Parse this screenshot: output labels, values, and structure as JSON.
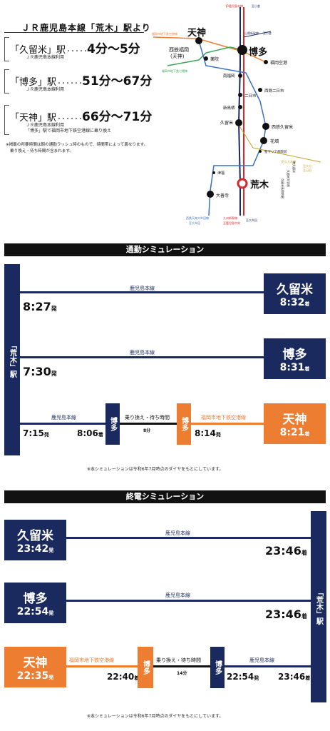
{
  "header": {
    "title": "ＪＲ鹿児島本線「荒木」駅より"
  },
  "routes": [
    {
      "station": "「久留米」駅",
      "dots": "・・・・・",
      "time": "4分～5分",
      "note1": "ＪＲ鹿児島本線利用",
      "note2": ""
    },
    {
      "station": "「博多」駅",
      "dots": "・・・・・・",
      "time": "51分～67分",
      "note1": "ＪＲ鹿児島本線利用",
      "note2": ""
    },
    {
      "station": "「天神」駅",
      "dots": "・・・・・・",
      "time": "66分～71分",
      "note1": "ＪＲ鹿児島本線利用",
      "note2": "「博多」駅で福岡市地下鉄空港線に乗り換え"
    }
  ],
  "route_disclaimer": {
    "line1": "※掲載の所要時間は朝の通勤ラッシュ時のもので、時間帯によって異なります。",
    "line2": "乗り換え・待ち時間が含まれます。"
  },
  "map": {
    "lines": {
      "jr_kagoshima": "JR鹿児島本線",
      "sanyo_shinkansen": "山陽新幹線",
      "subway_kuko": "福岡市地下鉄空港線",
      "subway_nanakuma": "福岡市地下鉄七隈線",
      "kyushu_shinkansen": "九州新幹線",
      "jr_kuko": "至空港",
      "nishitetsu_tenjin": "西鉄天神大牟田線",
      "jr_hotarunuma": "JR久大本線"
    },
    "stations": {
      "tenjin": "天神",
      "hakata": "博多",
      "nishitetsu_fukuoka": "西鉄福岡",
      "nishitetsu_fukuoka_sub": "(天神)",
      "yakuin": "薬院",
      "fukuoka_airport": "福岡空港",
      "minami_fukuoka": "南福岡",
      "nishitetsu_futsukaichi": "西鉄二日市",
      "futsukaichi": "二日市",
      "shin_tosu": "新鳥栖",
      "kurume": "久留米",
      "nishitetsu_kurume": "西鉄久留米",
      "hanabatake": "花畑",
      "seibo_maria": "聖マリア病院前",
      "tsubuku": "津福",
      "araki": "荒木",
      "daizenji": "大善寺",
      "kurume_daigaku": "久留米大学前",
      "kurume_koko": "久留米高校前駅",
      "minami_kurume": "南久留米"
    },
    "labels": {
      "to_kokura": "至小倉",
      "to_kokura2": "至小倉",
      "to_kagoshima_jr": "至大牟田",
      "to_omuta": "至大牟田",
      "to_kagoshima_chuo": "至鹿児島中央",
      "to_oita": "至大分",
      "to_oita2": "至日田",
      "to_kuko": "至空港",
      "nishitetsu_omuta": "至大牟田"
    },
    "colors": {
      "jr": "#1a2a5e",
      "shinkansen": "#d9262c",
      "subway_kuko": "#ed7d31",
      "subway_nanakuma": "#3aa357",
      "nishitetsu": "#3a6fc4",
      "kudai": "#c9a227"
    }
  },
  "commute": {
    "heading": "通勤シミュレーション",
    "origin_label": "「荒木」駅",
    "rows": [
      {
        "line": "鹿児島本線",
        "depart": "8:27",
        "depart_suffix": "発",
        "dest": "久留米",
        "arrive": "8:32",
        "arrive_suffix": "着"
      },
      {
        "line": "鹿児島本線",
        "depart": "7:30",
        "depart_suffix": "発",
        "dest": "博多",
        "arrive": "8:31",
        "arrive_suffix": "着"
      }
    ],
    "transfer_row": {
      "line1": "鹿児島本線",
      "depart": "7:15",
      "depart_suffix": "発",
      "transfer_arrive": "8:06",
      "transfer_arrive_suffix": "着",
      "transfer_station": "博多",
      "transfer_wait_label": "乗り換え・待ち時間",
      "transfer_wait": "8分",
      "transfer_station2": "博多",
      "line2": "福岡市地下鉄空港線",
      "transfer_depart": "8:14",
      "transfer_depart_suffix": "発",
      "dest": "天神",
      "arrive": "8:21",
      "arrive_suffix": "着"
    },
    "note": "※本シミュレーションは令和6年7月時点のダイヤをもとにしています。"
  },
  "last_train": {
    "heading": "終電シミュレーション",
    "dest_label": "「荒木」駅",
    "rows": [
      {
        "origin": "久留米",
        "depart": "23:42",
        "depart_suffix": "発",
        "line": "鹿児島本線",
        "arrive": "23:46",
        "arrive_suffix": "着"
      },
      {
        "origin": "博多",
        "depart": "22:54",
        "depart_suffix": "発",
        "line": "鹿児島本線",
        "arrive": "23:46",
        "arrive_suffix": "着"
      }
    ],
    "transfer_row": {
      "origin": "天神",
      "depart": "22:35",
      "depart_suffix": "発",
      "line1": "福岡市地下鉄空港線",
      "transfer_arrive": "22:40",
      "transfer_arrive_suffix": "着",
      "transfer_station": "博多",
      "transfer_wait_label": "乗り換え・待ち時間",
      "transfer_wait": "14分",
      "transfer_station2": "博多",
      "line2": "鹿児島本線",
      "transfer_depart": "22:54",
      "transfer_depart_suffix": "発",
      "arrive": "23:46",
      "arrive_suffix": "着"
    },
    "note": "※本シミュレーションは令和6年7月時点のダイヤをもとにしています。"
  }
}
